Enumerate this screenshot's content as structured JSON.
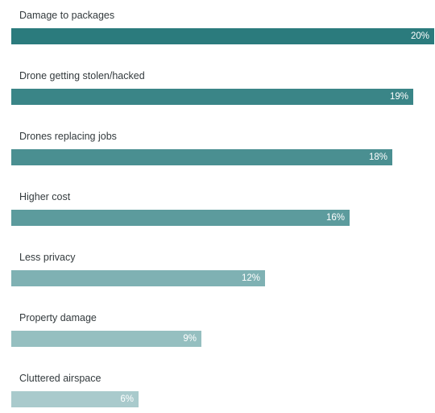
{
  "chart_data": {
    "type": "bar",
    "orientation": "horizontal",
    "categories": [
      "Damage to packages",
      "Drone getting stolen/hacked",
      "Drones replacing jobs",
      "Higher cost",
      "Less privacy",
      "Property damage",
      "Cluttered airspace"
    ],
    "values": [
      20,
      19,
      18,
      16,
      12,
      9,
      6
    ],
    "value_labels": [
      "20%",
      "19%",
      "18%",
      "16%",
      "12%",
      "9%",
      "6%"
    ],
    "unit": "%",
    "xlim": [
      0,
      20
    ],
    "grid": false,
    "legend": "none",
    "colors": [
      "#2b7b7d",
      "#3a8587",
      "#4a8f91",
      "#5c9b9d",
      "#7fb1b3",
      "#95bfc0",
      "#a9cacc"
    ]
  }
}
